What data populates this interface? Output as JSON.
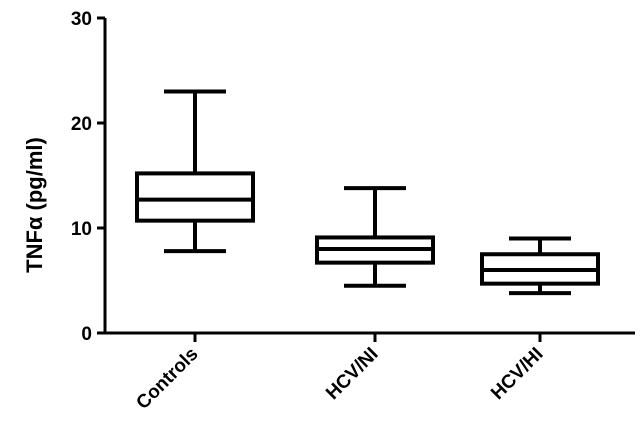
{
  "chart_data": {
    "type": "box",
    "categories": [
      "Controls",
      "HCV/NI",
      "HCV/HI"
    ],
    "boxes": [
      {
        "name": "Controls",
        "min": 7.8,
        "q1": 10.7,
        "median": 12.7,
        "q3": 15.2,
        "max": 23.0
      },
      {
        "name": "HCV/NI",
        "min": 4.5,
        "q1": 6.7,
        "median": 8.0,
        "q3": 9.1,
        "max": 13.8
      },
      {
        "name": "HCV/HI",
        "min": 3.8,
        "q1": 4.7,
        "median": 6.0,
        "q3": 7.5,
        "max": 9.0
      }
    ],
    "ylabel": "TNFα (pg/ml)",
    "xlabel": "",
    "title": "",
    "ylim": [
      0,
      30
    ],
    "yticks": [
      0,
      10,
      20,
      30
    ],
    "grid": false,
    "colors": {
      "stroke": "#000000",
      "fill": "#ffffff"
    }
  }
}
